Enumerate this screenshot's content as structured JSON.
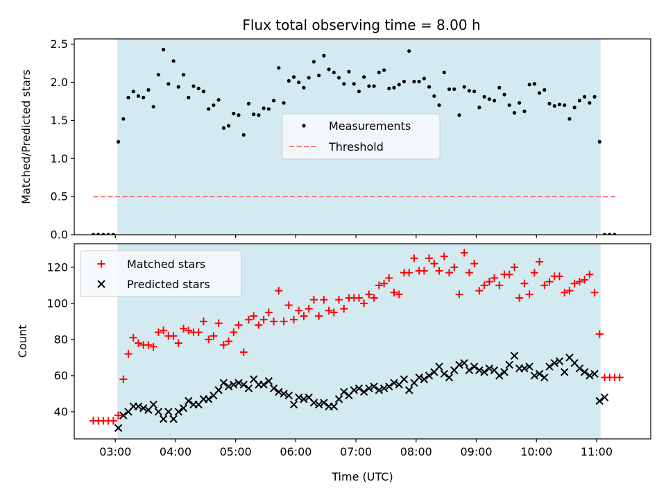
{
  "title": "Flux total observing time = 8.00 h",
  "colors": {
    "observing_band": "#d3eaf0",
    "measurement": "#000000",
    "threshold": "#f47a7a",
    "matched": "#ff0000",
    "predicted": "#000000",
    "legend_bg": "#f6f9fb"
  },
  "chart_data": [
    {
      "type": "scatter",
      "ylabel": "Matched/Predicted stars",
      "xlabel": "",
      "ylim": [
        0.0,
        2.57
      ],
      "yticks": [
        "0.0",
        "0.5",
        "1.0",
        "1.5",
        "2.0",
        "2.5"
      ],
      "ytick_values": [
        0.0,
        0.5,
        1.0,
        1.5,
        2.0,
        2.5
      ],
      "xlim": [
        "02:19",
        "11:54"
      ],
      "x_ticks": [
        "03:00",
        "04:00",
        "05:00",
        "06:00",
        "07:00",
        "08:00",
        "09:00",
        "10:00",
        "11:00"
      ],
      "observing_band": [
        "03:02",
        "11:04"
      ],
      "legend": {
        "location": "center",
        "entries": [
          "Measurements",
          "Threshold"
        ]
      },
      "threshold": {
        "name": "Threshold",
        "value": 0.5,
        "x_range": [
          "02:38",
          "11:20"
        ]
      },
      "series": [
        {
          "name": "Measurements",
          "x": [
            "02:38",
            "02:43",
            "02:48",
            "02:53",
            "02:58",
            "03:03",
            "03:08",
            "03:13",
            "03:18",
            "03:23",
            "03:28",
            "03:33",
            "03:38",
            "03:43",
            "03:48",
            "03:53",
            "03:58",
            "04:03",
            "04:08",
            "04:13",
            "04:18",
            "04:23",
            "04:28",
            "04:33",
            "04:38",
            "04:43",
            "04:48",
            "04:53",
            "04:58",
            "05:03",
            "05:08",
            "05:13",
            "05:18",
            "05:23",
            "05:28",
            "05:33",
            "05:38",
            "05:43",
            "05:48",
            "05:53",
            "05:58",
            "06:03",
            "06:08",
            "06:13",
            "06:18",
            "06:23",
            "06:28",
            "06:33",
            "06:38",
            "06:43",
            "06:48",
            "06:53",
            "06:58",
            "07:03",
            "07:08",
            "07:13",
            "07:18",
            "07:23",
            "07:28",
            "07:33",
            "07:38",
            "07:43",
            "07:48",
            "07:53",
            "07:58",
            "08:03",
            "08:08",
            "08:13",
            "08:18",
            "08:23",
            "08:28",
            "08:33",
            "08:38",
            "08:43",
            "08:48",
            "08:53",
            "08:58",
            "09:03",
            "09:08",
            "09:13",
            "09:18",
            "09:23",
            "09:28",
            "09:33",
            "09:38",
            "09:43",
            "09:48",
            "09:53",
            "09:58",
            "10:03",
            "10:08",
            "10:13",
            "10:18",
            "10:23",
            "10:28",
            "10:33",
            "10:38",
            "10:43",
            "10:48",
            "10:53",
            "10:58",
            "11:03",
            "11:08",
            "11:13",
            "11:18"
          ],
          "y": [
            0.0,
            0.0,
            0.0,
            0.0,
            0.0,
            1.22,
            1.52,
            1.8,
            1.88,
            1.82,
            1.8,
            1.9,
            1.68,
            2.1,
            2.43,
            1.98,
            2.28,
            1.94,
            2.1,
            1.8,
            1.95,
            1.92,
            1.88,
            1.65,
            1.7,
            1.77,
            1.4,
            1.43,
            1.59,
            1.57,
            1.31,
            1.72,
            1.58,
            1.57,
            1.66,
            1.65,
            1.76,
            2.19,
            1.73,
            2.02,
            2.07,
            2.0,
            1.93,
            2.06,
            2.27,
            2.09,
            2.35,
            2.17,
            2.13,
            2.06,
            1.98,
            2.14,
            1.98,
            1.88,
            2.07,
            1.95,
            1.95,
            2.13,
            2.16,
            1.92,
            1.93,
            1.97,
            2.01,
            2.41,
            2.01,
            2.01,
            2.05,
            1.94,
            1.82,
            1.7,
            2.13,
            1.91,
            1.91,
            1.57,
            1.94,
            1.89,
            1.88,
            1.67,
            1.81,
            1.78,
            1.76,
            1.93,
            1.84,
            1.7,
            1.6,
            1.73,
            1.62,
            1.97,
            1.98,
            1.86,
            1.9,
            1.72,
            1.69,
            1.71,
            1.7,
            1.52,
            1.67,
            1.76,
            1.81,
            1.73,
            1.81,
            1.22,
            0.0,
            0.0,
            0.0
          ]
        }
      ]
    },
    {
      "type": "scatter",
      "ylabel": "Count",
      "xlabel": "Time (UTC)",
      "ylim": [
        25,
        133
      ],
      "yticks": [
        "40",
        "60",
        "80",
        "100",
        "120"
      ],
      "ytick_values": [
        40,
        60,
        80,
        100,
        120
      ],
      "xlim": [
        "02:19",
        "11:54"
      ],
      "x_ticks": [
        "03:00",
        "04:00",
        "05:00",
        "06:00",
        "07:00",
        "08:00",
        "09:00",
        "10:00",
        "11:00"
      ],
      "observing_band": [
        "03:02",
        "11:04"
      ],
      "legend": {
        "location": "upper left",
        "entries": [
          "Matched stars",
          "Predicted stars"
        ]
      },
      "series": [
        {
          "name": "Matched stars",
          "marker": "+",
          "x": [
            "02:38",
            "02:43",
            "02:48",
            "02:53",
            "02:58",
            "03:03",
            "03:08",
            "03:13",
            "03:18",
            "03:23",
            "03:28",
            "03:33",
            "03:38",
            "03:43",
            "03:48",
            "03:53",
            "03:58",
            "04:03",
            "04:08",
            "04:13",
            "04:18",
            "04:23",
            "04:28",
            "04:33",
            "04:38",
            "04:43",
            "04:48",
            "04:53",
            "04:58",
            "05:03",
            "05:08",
            "05:13",
            "05:18",
            "05:23",
            "05:28",
            "05:33",
            "05:38",
            "05:43",
            "05:48",
            "05:53",
            "05:58",
            "06:03",
            "06:08",
            "06:13",
            "06:18",
            "06:23",
            "06:28",
            "06:33",
            "06:38",
            "06:43",
            "06:48",
            "06:53",
            "06:58",
            "07:03",
            "07:08",
            "07:13",
            "07:18",
            "07:23",
            "07:28",
            "07:33",
            "07:38",
            "07:43",
            "07:48",
            "07:53",
            "07:58",
            "08:03",
            "08:08",
            "08:13",
            "08:18",
            "08:23",
            "08:28",
            "08:33",
            "08:38",
            "08:43",
            "08:48",
            "08:53",
            "08:58",
            "09:03",
            "09:08",
            "09:13",
            "09:18",
            "09:23",
            "09:28",
            "09:33",
            "09:38",
            "09:43",
            "09:48",
            "09:53",
            "09:58",
            "10:03",
            "10:08",
            "10:13",
            "10:18",
            "10:23",
            "10:28",
            "10:33",
            "10:38",
            "10:43",
            "10:48",
            "10:53",
            "10:58",
            "11:03",
            "11:08",
            "11:13",
            "11:18",
            "11:23"
          ],
          "y": [
            35,
            35,
            35,
            35,
            35,
            38,
            58,
            72,
            81,
            78,
            77,
            77,
            76,
            84,
            85,
            82,
            82,
            78,
            86,
            85,
            84,
            84,
            90,
            80,
            82,
            89,
            77,
            79,
            84,
            88,
            73,
            91,
            93,
            88,
            91,
            95,
            90,
            107,
            90,
            99,
            91,
            96,
            93,
            97,
            102,
            93,
            102,
            96,
            95,
            102,
            97,
            103,
            103,
            103,
            100,
            105,
            103,
            110,
            111,
            114,
            106,
            105,
            117,
            117,
            125,
            118,
            118,
            125,
            122,
            118,
            126,
            117,
            120,
            105,
            128,
            117,
            122,
            107,
            110,
            112,
            114,
            110,
            116,
            116,
            120,
            103,
            111,
            105,
            117,
            123,
            110,
            112,
            115,
            115,
            106,
            107,
            111,
            112,
            113,
            116,
            106,
            83,
            59,
            59,
            59,
            59
          ]
        },
        {
          "name": "Predicted stars",
          "marker": "x",
          "x": [
            "03:03",
            "03:08",
            "03:13",
            "03:18",
            "03:23",
            "03:28",
            "03:33",
            "03:38",
            "03:43",
            "03:48",
            "03:53",
            "03:58",
            "04:03",
            "04:08",
            "04:13",
            "04:18",
            "04:23",
            "04:28",
            "04:33",
            "04:38",
            "04:43",
            "04:48",
            "04:53",
            "04:58",
            "05:03",
            "05:08",
            "05:13",
            "05:18",
            "05:23",
            "05:28",
            "05:33",
            "05:38",
            "05:43",
            "05:48",
            "05:53",
            "05:58",
            "06:03",
            "06:08",
            "06:13",
            "06:18",
            "06:23",
            "06:28",
            "06:33",
            "06:38",
            "06:43",
            "06:48",
            "06:53",
            "06:58",
            "07:03",
            "07:08",
            "07:13",
            "07:18",
            "07:23",
            "07:28",
            "07:33",
            "07:38",
            "07:43",
            "07:48",
            "07:53",
            "07:58",
            "08:03",
            "08:08",
            "08:13",
            "08:18",
            "08:23",
            "08:28",
            "08:33",
            "08:38",
            "08:43",
            "08:48",
            "08:53",
            "08:58",
            "09:03",
            "09:08",
            "09:13",
            "09:18",
            "09:23",
            "09:28",
            "09:33",
            "09:38",
            "09:43",
            "09:48",
            "09:53",
            "09:58",
            "10:03",
            "10:08",
            "10:13",
            "10:18",
            "10:23",
            "10:28",
            "10:33",
            "10:38",
            "10:43",
            "10:48",
            "10:53",
            "10:58",
            "11:03",
            "11:08"
          ],
          "y": [
            31,
            38,
            40,
            43,
            43,
            42,
            41,
            44,
            40,
            36,
            40,
            36,
            40,
            42,
            46,
            44,
            44,
            47,
            47,
            49,
            52,
            56,
            54,
            55,
            56,
            55,
            53,
            58,
            55,
            55,
            57,
            53,
            51,
            50,
            49,
            44,
            48,
            47,
            48,
            45,
            44,
            45,
            43,
            43,
            47,
            51,
            49,
            52,
            53,
            51,
            53,
            54,
            52,
            53,
            54,
            56,
            55,
            58,
            52,
            56,
            59,
            58,
            60,
            62,
            65,
            61,
            59,
            63,
            66,
            67,
            63,
            65,
            63,
            62,
            64,
            63,
            60,
            62,
            66,
            71,
            64,
            64,
            65,
            60,
            61,
            59,
            65,
            67,
            68,
            62,
            70,
            67,
            64,
            62,
            60,
            61,
            46,
            48
          ]
        }
      ]
    }
  ]
}
